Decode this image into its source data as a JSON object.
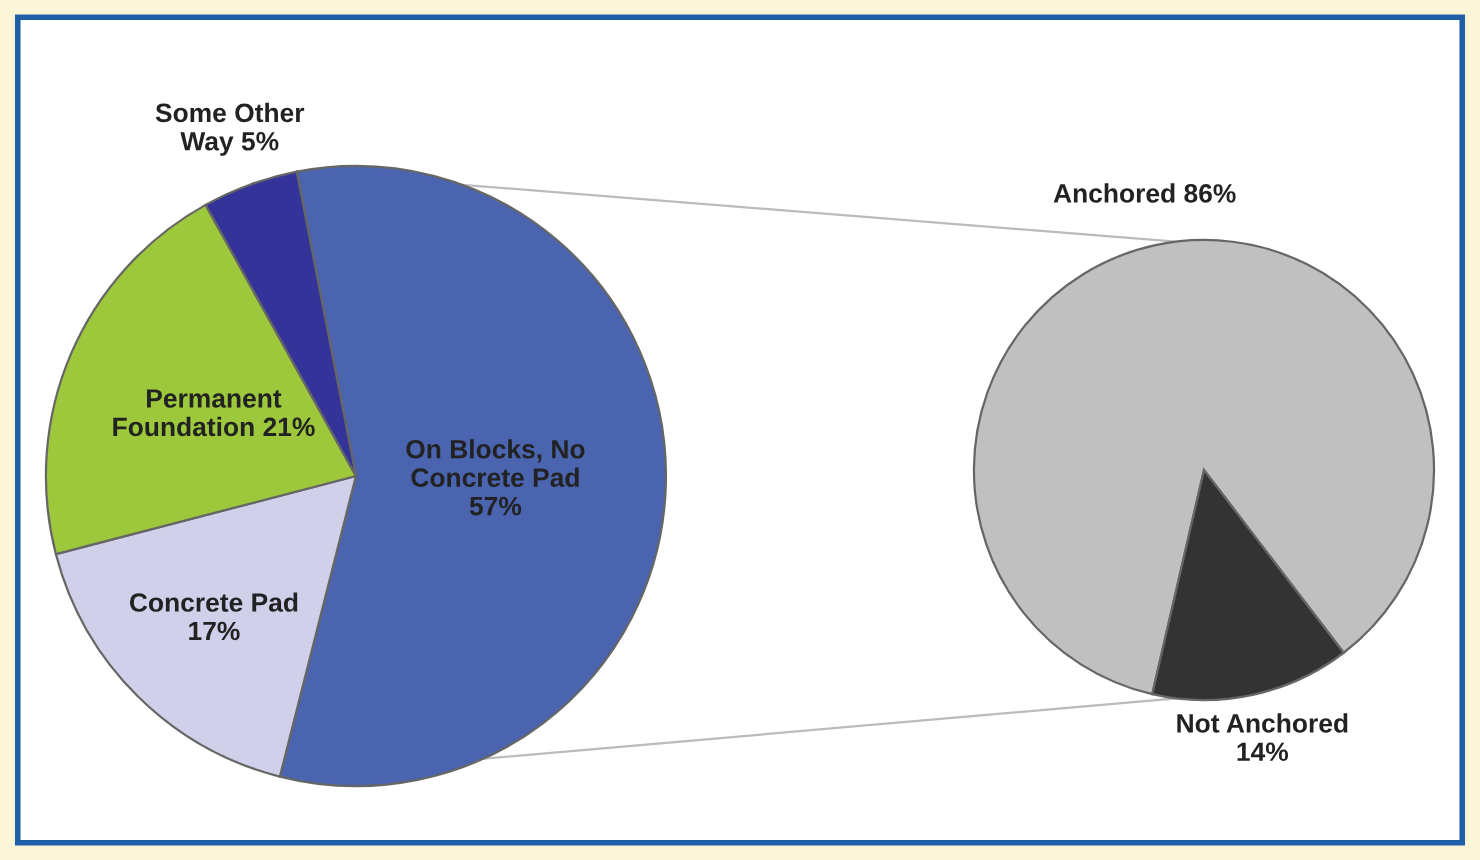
{
  "chart_data": [
    {
      "type": "pie",
      "categories": [
        "On Blocks, No\nConcrete Pad",
        "Concrete Pad",
        "Permanent\nFoundation",
        "Some Other\nWay"
      ],
      "values": [
        57,
        17,
        21,
        5
      ],
      "colors": [
        "#4a64b0",
        "#d0d0ea",
        "#9dc83c",
        "#333399"
      ],
      "value_labels": [
        "57%",
        "17%",
        "21%",
        "5%"
      ]
    },
    {
      "type": "pie",
      "categories": [
        "Anchored",
        "Not Anchored"
      ],
      "values": [
        86,
        14
      ],
      "colors": [
        "#c0c0c0",
        "#333333"
      ],
      "value_labels": [
        "86%",
        "14%"
      ]
    }
  ]
}
